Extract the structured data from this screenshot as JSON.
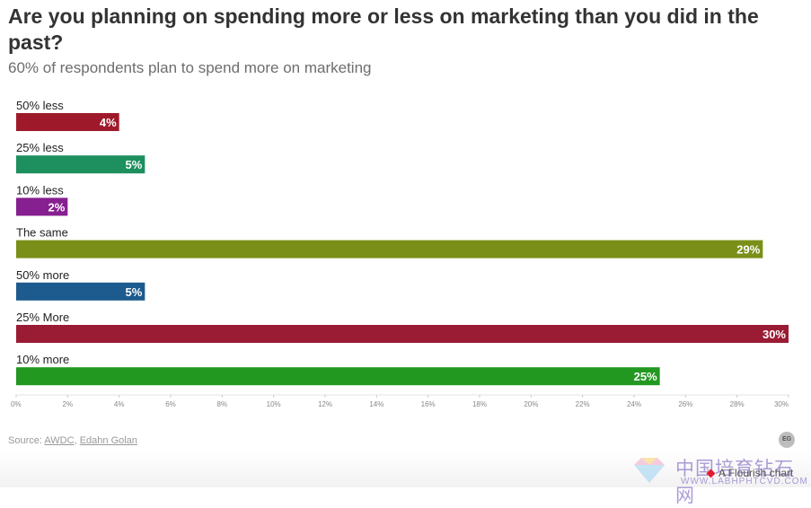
{
  "header": {
    "title": "Are you planning on spending more or less on marketing than you did in the past?",
    "subtitle": "60% of respondents plan to spend more on marketing"
  },
  "chart_data": {
    "type": "bar",
    "orientation": "horizontal",
    "title": "Are you planning on spending more or less on marketing than you did in the past?",
    "subtitle": "60% of respondents plan to spend more on marketing",
    "categories": [
      "50% less",
      "25% less",
      "10% less",
      "The same",
      "50% more",
      "25% More",
      "10% more"
    ],
    "values": [
      4,
      5,
      2,
      29,
      5,
      30,
      25
    ],
    "value_labels": [
      "4%",
      "5%",
      "2%",
      "29%",
      "5%",
      "30%",
      "25%"
    ],
    "colors": [
      "#9e1a2a",
      "#1e8f5e",
      "#861f8f",
      "#7a8f17",
      "#1d5a8e",
      "#9a1b34",
      "#239821"
    ],
    "xlim": [
      0,
      30
    ],
    "x_ticks": [
      "0%",
      "2%",
      "4%",
      "6%",
      "8%",
      "10%",
      "12%",
      "14%",
      "16%",
      "18%",
      "20%",
      "22%",
      "24%",
      "26%",
      "28%",
      "30%"
    ],
    "grid": false,
    "legend": "none"
  },
  "footer": {
    "source_prefix": "Source:",
    "source_link_1": "AWDC",
    "source_sep": ",",
    "source_link_2": "Edahn Golan",
    "badge": "EG",
    "flourish": "A Flourish chart"
  },
  "watermark": {
    "text": "中国培育钻石网",
    "url": "WWW.LABHPHTCVD.COM"
  }
}
